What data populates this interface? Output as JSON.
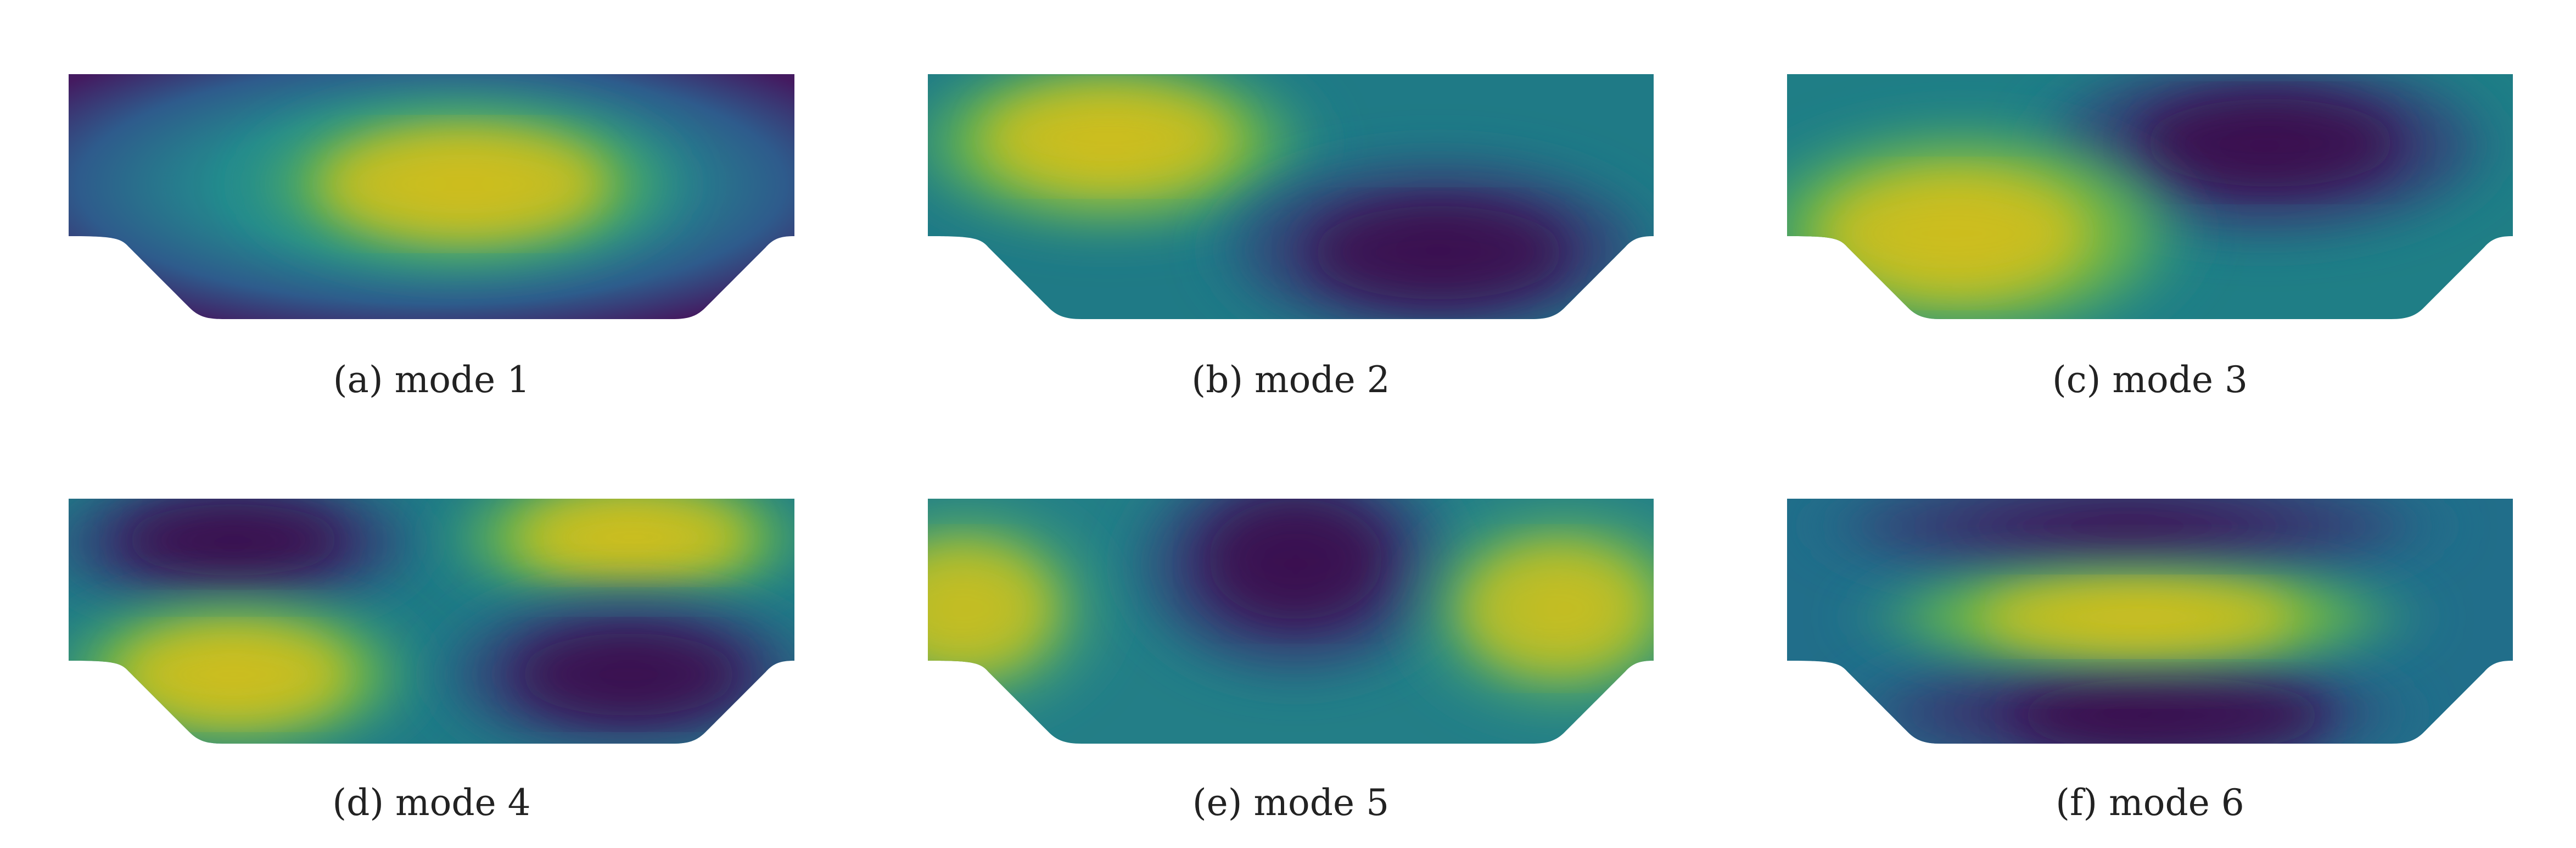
{
  "figure": {
    "panels": [
      {
        "caption": "(a) mode 1",
        "mode": 1
      },
      {
        "caption": "(b) mode 2",
        "mode": 2
      },
      {
        "caption": "(c) mode 3",
        "mode": 3
      },
      {
        "caption": "(d) mode 4",
        "mode": 4
      },
      {
        "caption": "(e) mode 5",
        "mode": 5
      },
      {
        "caption": "(f) mode 6",
        "mode": 6
      }
    ]
  },
  "colormap": {
    "name": "viridis",
    "low": "#440154",
    "mid": "#21918c",
    "high": "#fde725"
  }
}
